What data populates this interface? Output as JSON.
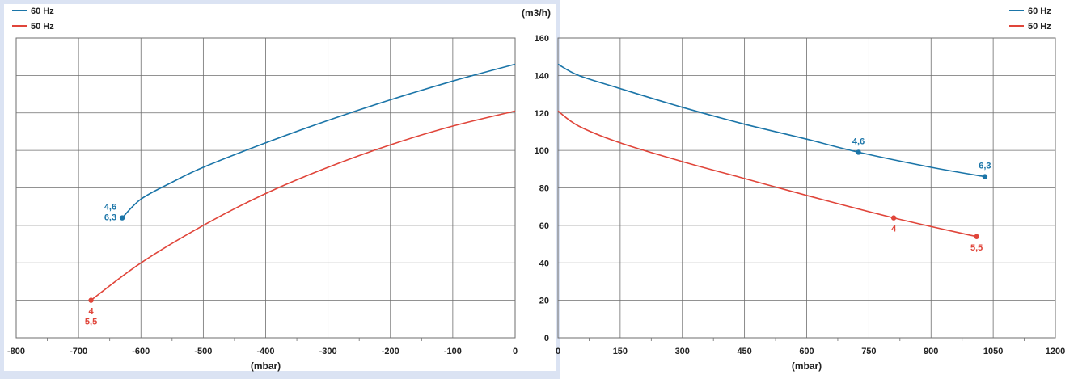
{
  "colors": {
    "hz60": "#1b75a8",
    "hz50": "#e0453a",
    "grid": "#6e6e6e",
    "frame": "#dbe3f3"
  },
  "legend": [
    {
      "key": "hz60",
      "label": "60 Hz"
    },
    {
      "key": "hz50",
      "label": "50 Hz"
    }
  ],
  "y_unit_label": "(m3/h)",
  "chart_data": [
    {
      "type": "line",
      "id": "vacuum",
      "xlabel": "(mbar)",
      "ylabel": "(m3/h)",
      "xlim": [
        -800,
        0
      ],
      "ylim": [
        0,
        160
      ],
      "x_ticks": [
        "-800",
        "-700",
        "-600",
        "-500",
        "-400",
        "-300",
        "-200",
        "-100",
        "0"
      ],
      "y_ticks": [
        "0",
        "20",
        "40",
        "60",
        "80",
        "100",
        "120",
        "140",
        "160"
      ],
      "grid": true,
      "legend_position": "top-left",
      "series": [
        {
          "name": "60 Hz",
          "color_key": "hz60",
          "x": [
            0,
            -100,
            -200,
            -300,
            -400,
            -500,
            -550,
            -600,
            -630
          ],
          "y": [
            146,
            137,
            127,
            116,
            104,
            91,
            83,
            74,
            64
          ]
        },
        {
          "name": "50 Hz",
          "color_key": "hz50",
          "x": [
            0,
            -100,
            -200,
            -300,
            -400,
            -500,
            -600,
            -680
          ],
          "y": [
            121,
            113,
            103,
            91,
            77,
            60,
            40,
            20
          ]
        }
      ],
      "annotations": [
        {
          "series": "60 Hz",
          "x": -630,
          "y": 64,
          "lines": [
            "4,6",
            "6,3"
          ],
          "placement": "left"
        },
        {
          "series": "50 Hz",
          "x": -680,
          "y": 20,
          "lines": [
            "4",
            "5,5"
          ],
          "placement": "below"
        }
      ]
    },
    {
      "type": "line",
      "id": "pressure",
      "xlabel": "(mbar)",
      "ylabel": "(m3/h)",
      "xlim": [
        0,
        1200
      ],
      "ylim": [
        0,
        160
      ],
      "x_ticks": [
        "0",
        "150",
        "300",
        "450",
        "600",
        "750",
        "900",
        "1050",
        "1200"
      ],
      "y_ticks": [
        "0",
        "20",
        "40",
        "60",
        "80",
        "100",
        "120",
        "140",
        "160"
      ],
      "grid": true,
      "legend_position": "top-right",
      "series": [
        {
          "name": "60 Hz",
          "color_key": "hz60",
          "x": [
            0,
            50,
            150,
            300,
            450,
            600,
            725,
            900,
            1030
          ],
          "y": [
            146,
            140,
            133,
            123,
            114,
            106,
            99,
            91,
            86
          ]
        },
        {
          "name": "50 Hz",
          "color_key": "hz50",
          "x": [
            0,
            50,
            150,
            300,
            450,
            600,
            810,
            1010
          ],
          "y": [
            121,
            113,
            104,
            94,
            85,
            76,
            64,
            54
          ]
        }
      ],
      "annotations": [
        {
          "series": "60 Hz",
          "x": 725,
          "y": 99,
          "lines": [
            "4,6"
          ],
          "placement": "above"
        },
        {
          "series": "60 Hz",
          "x": 1030,
          "y": 86,
          "lines": [
            "6,3"
          ],
          "placement": "above"
        },
        {
          "series": "50 Hz",
          "x": 810,
          "y": 64,
          "lines": [
            "4"
          ],
          "placement": "below"
        },
        {
          "series": "50 Hz",
          "x": 1010,
          "y": 54,
          "lines": [
            "5,5"
          ],
          "placement": "below"
        }
      ]
    }
  ]
}
